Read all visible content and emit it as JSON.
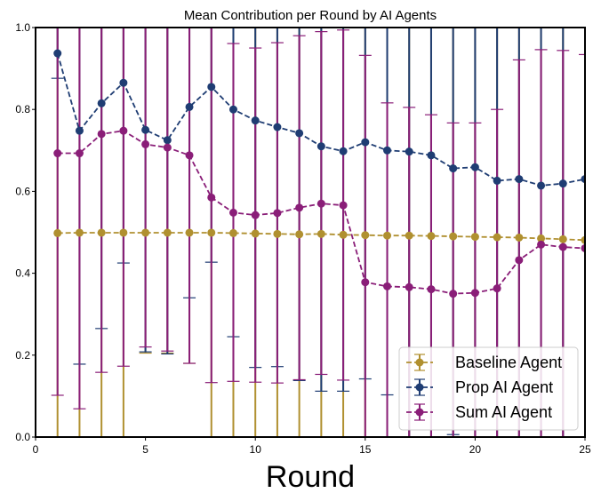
{
  "chart_data": {
    "type": "line",
    "title": "Mean Contribution per Round by AI Agents",
    "xlabel": "Round",
    "ylabel": "",
    "xlim": [
      0,
      25
    ],
    "ylim": [
      0.0,
      1.0
    ],
    "xticks": [
      0,
      5,
      10,
      15,
      20,
      25
    ],
    "yticks": [
      0.0,
      0.2,
      0.4,
      0.6,
      0.8,
      1.0
    ],
    "xtick_labels": [
      "0",
      "5",
      "10",
      "15",
      "20",
      "25"
    ],
    "ytick_labels": [
      "0.0",
      "0.2",
      "0.4",
      "0.6",
      "0.8",
      "1.0"
    ],
    "grid": false,
    "legend_position": "lower-right",
    "x": [
      1,
      2,
      3,
      4,
      5,
      6,
      7,
      8,
      9,
      10,
      11,
      12,
      13,
      14,
      15,
      16,
      17,
      18,
      19,
      20,
      21,
      22,
      23,
      24,
      25
    ],
    "series": [
      {
        "name": "Baseline Agent",
        "color": "#b09030",
        "values": [
          0.498,
          0.499,
          0.499,
          0.499,
          0.499,
          0.499,
          0.499,
          0.499,
          0.498,
          0.497,
          0.496,
          0.495,
          0.496,
          0.494,
          0.493,
          0.492,
          0.492,
          0.491,
          0.49,
          0.489,
          0.488,
          0.487,
          0.485,
          0.483,
          0.481
        ],
        "err_low": [
          0.0,
          0.0,
          0.0,
          0.0,
          0.205,
          0.205,
          0.18,
          0.0,
          0.0,
          0.0,
          0.0,
          0.0,
          0.0,
          0.0,
          0.0,
          0.0,
          0.0,
          0.0,
          0.0,
          0.0,
          0.0,
          0.0,
          0.0,
          0.0,
          0.0
        ],
        "err_high": [
          1.0,
          1.0,
          1.0,
          1.0,
          1.0,
          1.0,
          1.0,
          1.0,
          1.0,
          1.0,
          1.0,
          1.0,
          1.0,
          1.0,
          1.0,
          1.0,
          1.0,
          1.0,
          1.0,
          1.0,
          1.0,
          1.0,
          1.0,
          1.0,
          1.0
        ]
      },
      {
        "name": "Prop AI Agent",
        "color": "#1f3d73",
        "values": [
          0.937,
          0.748,
          0.815,
          0.865,
          0.75,
          0.725,
          0.806,
          0.855,
          0.8,
          0.773,
          0.757,
          0.742,
          0.71,
          0.698,
          0.72,
          0.7,
          0.697,
          0.688,
          0.656,
          0.659,
          0.626,
          0.63,
          0.614,
          0.619,
          0.63
        ],
        "err_low": [
          0.876,
          0.178,
          0.265,
          0.425,
          0.208,
          0.203,
          0.34,
          0.427,
          0.245,
          0.17,
          0.172,
          0.138,
          0.112,
          0.112,
          0.142,
          0.103,
          0.0,
          0.0,
          0.006,
          0.0,
          0.0,
          0.0,
          0.0,
          0.0,
          0.0
        ],
        "err_high": [
          1.0,
          1.0,
          1.0,
          1.0,
          1.0,
          1.0,
          1.0,
          1.0,
          1.0,
          1.0,
          1.0,
          1.0,
          1.0,
          1.0,
          1.0,
          1.0,
          1.0,
          1.0,
          1.0,
          1.0,
          1.0,
          1.0,
          1.0,
          1.0,
          1.0
        ]
      },
      {
        "name": "Sum AI Agent",
        "color": "#8a1e78",
        "values": [
          0.693,
          0.693,
          0.74,
          0.748,
          0.715,
          0.707,
          0.688,
          0.585,
          0.548,
          0.542,
          0.547,
          0.56,
          0.57,
          0.566,
          0.378,
          0.368,
          0.366,
          0.361,
          0.35,
          0.352,
          0.363,
          0.432,
          0.47,
          0.464,
          0.461
        ],
        "err_low": [
          0.102,
          0.069,
          0.158,
          0.173,
          0.22,
          0.21,
          0.18,
          0.133,
          0.136,
          0.134,
          0.132,
          0.14,
          0.153,
          0.139,
          0.0,
          0.0,
          0.0,
          0.0,
          0.0,
          0.0,
          0.0,
          0.0,
          0.0,
          0.0,
          0.0
        ],
        "err_high": [
          1.0,
          1.0,
          1.0,
          1.0,
          1.0,
          1.0,
          1.0,
          1.0,
          0.961,
          0.95,
          0.963,
          0.98,
          0.99,
          0.994,
          0.932,
          0.816,
          0.805,
          0.787,
          0.767,
          0.767,
          0.8,
          0.921,
          0.946,
          0.944,
          0.934
        ]
      }
    ]
  }
}
